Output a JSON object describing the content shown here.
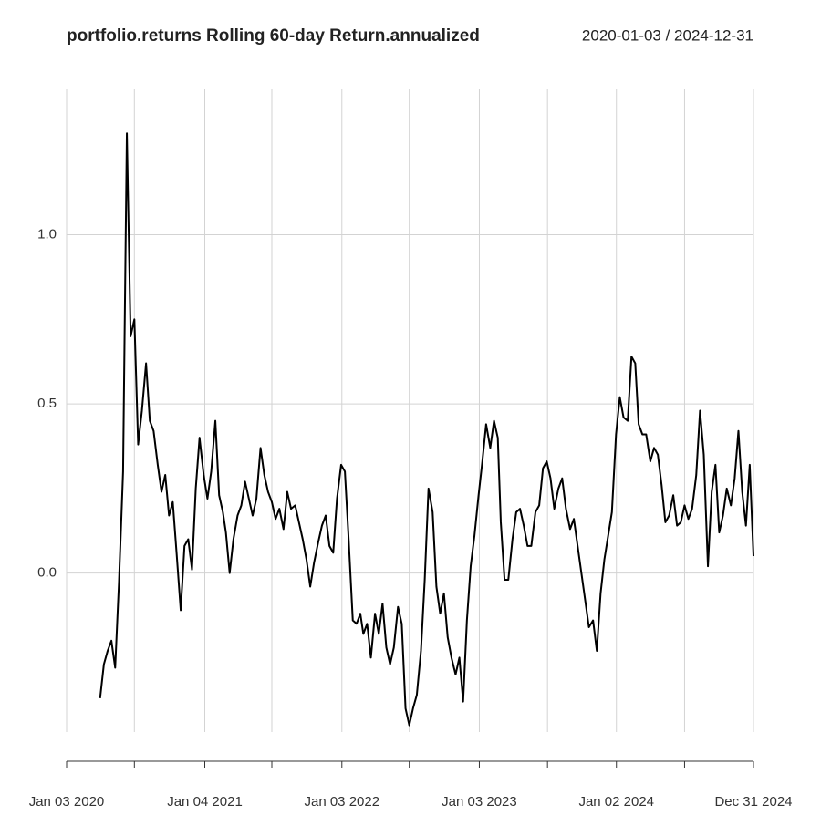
{
  "chart_data": {
    "type": "line",
    "title": "portfolio.returns Rolling 60-day Return.annualized",
    "date_range": "2020-01-03 / 2024-12-31",
    "color": "#000000",
    "grid": true,
    "xlim": [
      "2020-01-03",
      "2024-12-31"
    ],
    "xticks": [
      {
        "value": "2020-01-03",
        "label": "Jan 03 2020"
      },
      {
        "value": "2021-01-04",
        "label": "Jan 04 2021"
      },
      {
        "value": "2022-01-03",
        "label": "Jan 03 2022"
      },
      {
        "value": "2023-01-03",
        "label": "Jan 03 2023"
      },
      {
        "value": "2024-01-02",
        "label": "Jan 02 2024"
      },
      {
        "value": "2024-12-31",
        "label": "Dec 31 2024"
      }
    ],
    "xticks_minor": [
      "2020-07-01",
      "2021-07-01",
      "2022-07-01",
      "2023-07-03",
      "2024-07-01"
    ],
    "ylim": [
      -0.47,
      1.43
    ],
    "yticks": [
      {
        "value": 0,
        "label": "0.0"
      },
      0.5,
      {
        "value": 1,
        "label": "1.0"
      }
    ],
    "x": [
      "2020-04-01",
      "2020-04-11",
      "2020-04-21",
      "2020-05-01",
      "2020-05-11",
      "2020-05-21",
      "2020-06-01",
      "2020-06-11",
      "2020-06-21",
      "2020-07-01",
      "2020-07-11",
      "2020-07-21",
      "2020-08-01",
      "2020-08-11",
      "2020-08-21",
      "2020-09-01",
      "2020-09-11",
      "2020-09-21",
      "2020-10-01",
      "2020-10-11",
      "2020-10-21",
      "2020-11-01",
      "2020-11-11",
      "2020-11-21",
      "2020-12-01",
      "2020-12-11",
      "2020-12-21",
      "2021-01-01",
      "2021-01-11",
      "2021-01-21",
      "2021-02-01",
      "2021-02-11",
      "2021-02-21",
      "2021-03-01",
      "2021-03-11",
      "2021-03-21",
      "2021-04-01",
      "2021-04-11",
      "2021-04-21",
      "2021-05-01",
      "2021-05-11",
      "2021-05-21",
      "2021-06-01",
      "2021-06-11",
      "2021-06-21",
      "2021-07-01",
      "2021-07-11",
      "2021-07-21",
      "2021-08-01",
      "2021-08-11",
      "2021-08-21",
      "2021-09-01",
      "2021-09-11",
      "2021-09-21",
      "2021-10-01",
      "2021-10-11",
      "2021-10-21",
      "2021-11-01",
      "2021-11-11",
      "2021-11-21",
      "2021-12-01",
      "2021-12-11",
      "2021-12-21",
      "2022-01-01",
      "2022-01-11",
      "2022-01-21",
      "2022-02-01",
      "2022-02-11",
      "2022-02-21",
      "2022-03-01",
      "2022-03-11",
      "2022-03-21",
      "2022-04-01",
      "2022-04-11",
      "2022-04-21",
      "2022-05-01",
      "2022-05-11",
      "2022-05-21",
      "2022-06-01",
      "2022-06-11",
      "2022-06-21",
      "2022-07-01",
      "2022-07-11",
      "2022-07-21",
      "2022-08-01",
      "2022-08-11",
      "2022-08-21",
      "2022-09-01",
      "2022-09-11",
      "2022-09-21",
      "2022-10-01",
      "2022-10-11",
      "2022-10-21",
      "2022-11-01",
      "2022-11-11",
      "2022-11-21",
      "2022-12-01",
      "2022-12-11",
      "2022-12-21",
      "2023-01-01",
      "2023-01-11",
      "2023-01-21",
      "2023-02-01",
      "2023-02-11",
      "2023-02-21",
      "2023-03-01",
      "2023-03-11",
      "2023-03-21",
      "2023-04-01",
      "2023-04-11",
      "2023-04-21",
      "2023-05-01",
      "2023-05-11",
      "2023-05-21",
      "2023-06-01",
      "2023-06-11",
      "2023-06-21",
      "2023-07-01",
      "2023-07-11",
      "2023-07-21",
      "2023-08-01",
      "2023-08-11",
      "2023-08-21",
      "2023-09-01",
      "2023-09-11",
      "2023-09-21",
      "2023-10-01",
      "2023-10-11",
      "2023-10-21",
      "2023-11-01",
      "2023-11-11",
      "2023-11-21",
      "2023-12-01",
      "2023-12-11",
      "2023-12-21",
      "2024-01-01",
      "2024-01-11",
      "2024-01-21",
      "2024-02-01",
      "2024-02-11",
      "2024-02-21",
      "2024-03-01",
      "2024-03-11",
      "2024-03-21",
      "2024-04-01",
      "2024-04-11",
      "2024-04-21",
      "2024-05-01",
      "2024-05-11",
      "2024-05-21",
      "2024-06-01",
      "2024-06-11",
      "2024-06-21",
      "2024-07-01",
      "2024-07-11",
      "2024-07-21",
      "2024-08-01",
      "2024-08-11",
      "2024-08-21",
      "2024-09-01",
      "2024-09-11",
      "2024-09-21",
      "2024-10-01",
      "2024-10-11",
      "2024-10-21",
      "2024-11-01",
      "2024-11-11",
      "2024-11-21",
      "2024-12-01",
      "2024-12-11",
      "2024-12-21",
      "2024-12-31"
    ],
    "values": [
      -0.37,
      -0.27,
      -0.23,
      -0.2,
      -0.28,
      -0.03,
      0.3,
      1.3,
      0.7,
      0.75,
      0.38,
      0.48,
      0.62,
      0.45,
      0.42,
      0.32,
      0.24,
      0.29,
      0.17,
      0.21,
      0.06,
      -0.11,
      0.08,
      0.1,
      0.01,
      0.25,
      0.4,
      0.29,
      0.22,
      0.3,
      0.45,
      0.23,
      0.18,
      0.12,
      0.0,
      0.1,
      0.17,
      0.2,
      0.27,
      0.22,
      0.17,
      0.22,
      0.37,
      0.29,
      0.24,
      0.21,
      0.16,
      0.19,
      0.13,
      0.24,
      0.19,
      0.2,
      0.15,
      0.1,
      0.04,
      -0.04,
      0.03,
      0.09,
      0.14,
      0.17,
      0.08,
      0.06,
      0.22,
      0.32,
      0.3,
      0.1,
      -0.14,
      -0.15,
      -0.12,
      -0.18,
      -0.15,
      -0.25,
      -0.12,
      -0.18,
      -0.09,
      -0.22,
      -0.27,
      -0.22,
      -0.1,
      -0.15,
      -0.4,
      -0.45,
      -0.4,
      -0.36,
      -0.23,
      -0.02,
      0.25,
      0.18,
      -0.04,
      -0.12,
      -0.06,
      -0.19,
      -0.25,
      -0.3,
      -0.25,
      -0.38,
      -0.14,
      0.02,
      0.11,
      0.23,
      0.33,
      0.44,
      0.37,
      0.45,
      0.4,
      0.15,
      -0.02,
      -0.02,
      0.1,
      0.18,
      0.19,
      0.14,
      0.08,
      0.08,
      0.18,
      0.2,
      0.31,
      0.33,
      0.28,
      0.19,
      0.25,
      0.28,
      0.19,
      0.13,
      0.16,
      0.08,
      0.0,
      -0.08,
      -0.16,
      -0.14,
      -0.23,
      -0.06,
      0.04,
      0.11,
      0.18,
      0.41,
      0.52,
      0.46,
      0.45,
      0.64,
      0.62,
      0.44,
      0.41,
      0.41,
      0.33,
      0.37,
      0.35,
      0.26,
      0.15,
      0.17,
      0.23,
      0.14,
      0.15,
      0.2,
      0.16,
      0.19,
      0.29,
      0.48,
      0.35,
      0.02,
      0.24,
      0.32,
      0.12,
      0.17,
      0.25,
      0.2,
      0.28,
      0.42,
      0.24,
      0.14,
      0.32,
      0.05
    ]
  }
}
